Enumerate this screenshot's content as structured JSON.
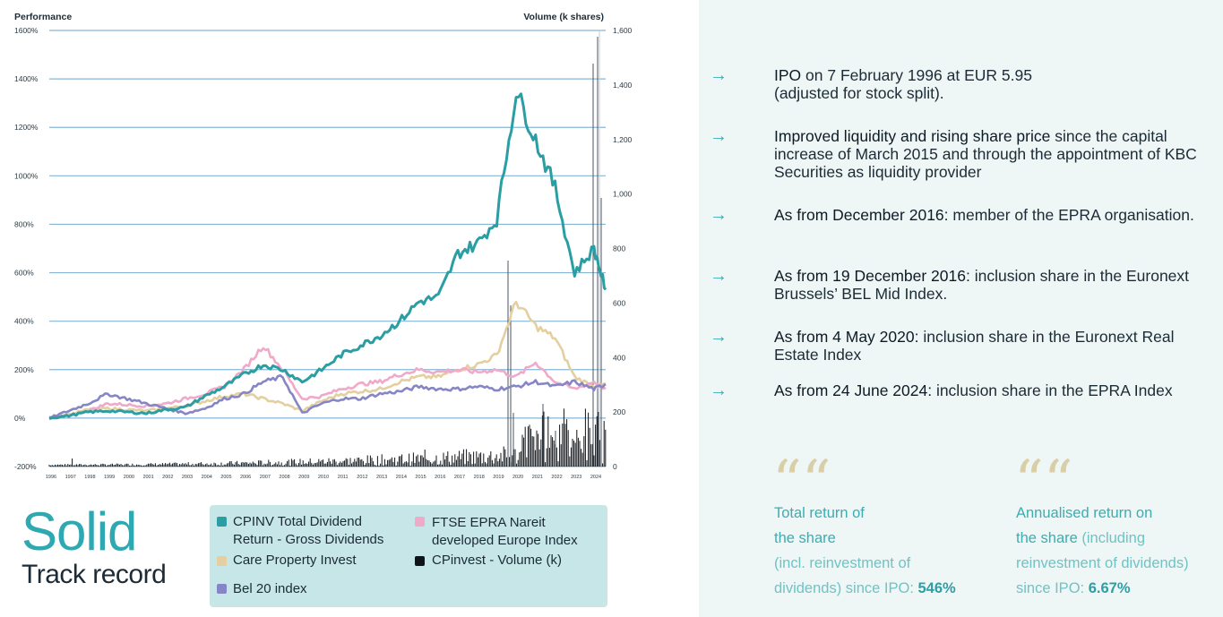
{
  "chart": {
    "left_axis_title": "Performance",
    "right_axis_title": "Volume (k shares)",
    "left_ticks": [
      "1600%",
      "1400%",
      "1200%",
      "1000%",
      "800%",
      "600%",
      "400%",
      "200%",
      "0%",
      "-200%"
    ],
    "right_ticks": [
      "1,600",
      "1,400",
      "1,200",
      "1,000",
      "800",
      "600",
      "400",
      "200",
      "0"
    ],
    "years": [
      "1996",
      "1997",
      "1998",
      "1999",
      "2000",
      "2001",
      "2002",
      "2003",
      "2004",
      "2005",
      "2006",
      "2007",
      "2008",
      "2009",
      "2010",
      "2011",
      "2012",
      "2013",
      "2014",
      "2015",
      "2016",
      "2017",
      "2018",
      "2019",
      "2020",
      "2021",
      "2022",
      "2023",
      "2024"
    ]
  },
  "chart_data": {
    "type": "line",
    "x": [
      1996,
      1997,
      1998,
      1999,
      2000,
      2001,
      2002,
      2003,
      2004,
      2005,
      2006,
      2007,
      2008,
      2009,
      2010,
      2011,
      2012,
      2013,
      2014,
      2015,
      2016,
      2017,
      2018,
      2019,
      2020,
      2021,
      2022,
      2023,
      2024,
      2024.6
    ],
    "ylim": [
      -200,
      1600
    ],
    "y2lim": [
      0,
      1600
    ],
    "series": [
      {
        "name": "CPINV Total Dividend Return - Gross Dividends",
        "color": "#2a9ea3",
        "values": [
          0,
          10,
          25,
          30,
          25,
          20,
          35,
          45,
          90,
          130,
          180,
          220,
          200,
          150,
          200,
          260,
          300,
          340,
          400,
          480,
          500,
          680,
          720,
          820,
          1350,
          1150,
          950,
          600,
          700,
          530
        ]
      },
      {
        "name": "FTSE EPRA Nareit developed Europe Index",
        "color": "#f0a9c9",
        "values": [
          0,
          10,
          30,
          60,
          55,
          50,
          60,
          80,
          100,
          130,
          200,
          300,
          200,
          80,
          90,
          120,
          140,
          150,
          180,
          200,
          190,
          200,
          190,
          200,
          170,
          230,
          150,
          120,
          150,
          120
        ]
      },
      {
        "name": "Care Property Invest",
        "color": "#e3cf9f",
        "values": [
          0,
          15,
          35,
          40,
          35,
          30,
          40,
          50,
          70,
          90,
          100,
          80,
          60,
          30,
          70,
          100,
          110,
          120,
          150,
          170,
          170,
          200,
          220,
          260,
          480,
          380,
          330,
          170,
          130,
          140
        ]
      },
      {
        "name": "Bel 20 index",
        "color": "#8686c6",
        "values": [
          0,
          30,
          60,
          100,
          80,
          60,
          40,
          20,
          40,
          80,
          100,
          150,
          170,
          20,
          60,
          80,
          80,
          100,
          110,
          130,
          120,
          120,
          130,
          120,
          130,
          150,
          130,
          150,
          120,
          140
        ]
      }
    ],
    "volume": {
      "name": "CPinvest - Volume (k)",
      "color": "#101418"
    }
  },
  "bullets": [
    {
      "bold": "IPO",
      "text": " on 7 February 1996 at EUR 5.95\n(adjusted for stock split)."
    },
    {
      "bold": "Improved liquidity and rising share price",
      "text": " since the capital increase of March 2015 and through the appointment of KBC Securities as liquidity provider"
    },
    {
      "bold": "As from December 2016:",
      "text": " member of the EPRA organisation."
    },
    {
      "bold": "As from 19 December 2016:",
      "text": " inclusion share in the Euronext Brussels’ BEL Mid Index."
    },
    {
      "bold": "As from 4 May 2020:",
      "text": " inclusion share in the Euronext Real Estate Index"
    },
    {
      "bold": "As from 24 June 2024:",
      "text": " inclusion share in the EPRA Index"
    }
  ],
  "arrow_glyph": "→",
  "quote_glyph": "““",
  "stats": {
    "total": {
      "line1": "Total return of",
      "line2": "the share",
      "line3": "(incl. reinvestment of",
      "line4a": "dividends) since IPO: ",
      "value": "546%"
    },
    "annual": {
      "line1": "Annualised return on",
      "line2a": "the share",
      "line2b": " (including",
      "line3": "reinvestment of dividends)",
      "line4a": "since IPO: ",
      "value": "6.67%"
    }
  },
  "title": {
    "big": "Solid",
    "small": "Track record"
  },
  "legend": [
    {
      "label": "CPINV Total Dividend\nReturn - Gross Dividends",
      "color": "#2a9ea3"
    },
    {
      "label": "FTSE EPRA Nareit\ndeveloped Europe Index",
      "color": "#f0a9c9"
    },
    {
      "label": "Care Property Invest",
      "color": "#e3cf9f"
    },
    {
      "label": "CPinvest - Volume (k)",
      "color": "#101418"
    },
    {
      "label": "Bel 20 index",
      "color": "#8686c6"
    }
  ]
}
